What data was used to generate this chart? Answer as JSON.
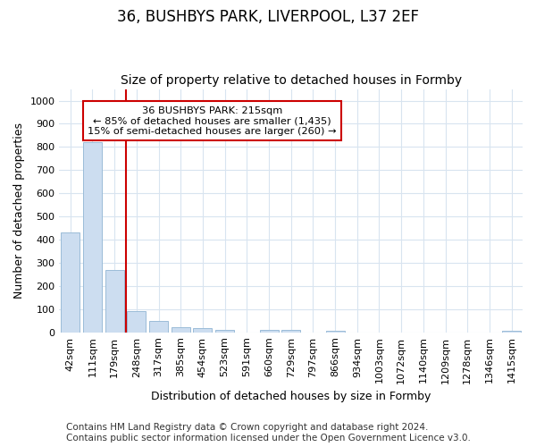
{
  "title": "36, BUSHBYS PARK, LIVERPOOL, L37 2EF",
  "subtitle": "Size of property relative to detached houses in Formby",
  "xlabel": "Distribution of detached houses by size in Formby",
  "ylabel": "Number of detached properties",
  "categories": [
    "42sqm",
    "111sqm",
    "179sqm",
    "248sqm",
    "317sqm",
    "385sqm",
    "454sqm",
    "523sqm",
    "591sqm",
    "660sqm",
    "729sqm",
    "797sqm",
    "866sqm",
    "934sqm",
    "1003sqm",
    "1072sqm",
    "1140sqm",
    "1209sqm",
    "1278sqm",
    "1346sqm",
    "1415sqm"
  ],
  "values": [
    432,
    820,
    267,
    90,
    48,
    23,
    17,
    11,
    0,
    11,
    11,
    0,
    5,
    0,
    0,
    0,
    0,
    0,
    0,
    0,
    7
  ],
  "bar_color": "#ccddf0",
  "bar_edge_color": "#9bbcd8",
  "vline_color": "#cc0000",
  "vline_index": 2.5,
  "annotation_text": "36 BUSHBYS PARK: 215sqm\n← 85% of detached houses are smaller (1,435)\n15% of semi-detached houses are larger (260) →",
  "annotation_box_color": "#ffffff",
  "annotation_box_edge": "#cc0000",
  "ylim": [
    0,
    1050
  ],
  "yticks": [
    0,
    100,
    200,
    300,
    400,
    500,
    600,
    700,
    800,
    900,
    1000
  ],
  "footer1": "Contains HM Land Registry data © Crown copyright and database right 2024.",
  "footer2": "Contains public sector information licensed under the Open Government Licence v3.0.",
  "bg_color": "#ffffff",
  "plot_bg_color": "#ffffff",
  "grid_color": "#d8e4f0",
  "title_fontsize": 12,
  "subtitle_fontsize": 10,
  "axis_label_fontsize": 9,
  "tick_fontsize": 8,
  "footer_fontsize": 7.5
}
